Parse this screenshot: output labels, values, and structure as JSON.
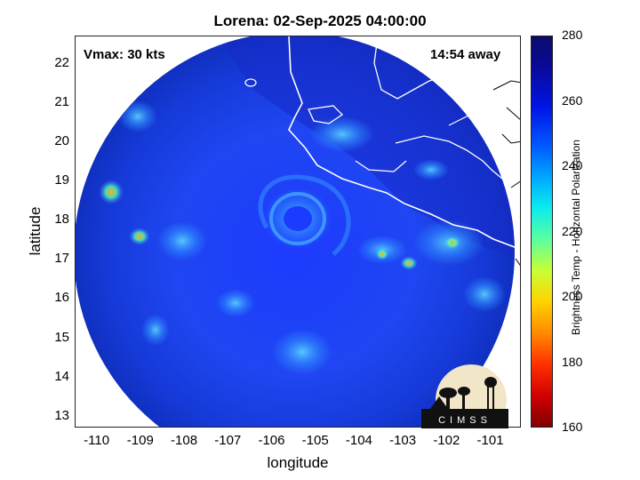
{
  "title": "Lorena: 02-Sep-2025 04:00:00",
  "annotations": {
    "vmax": "Vmax: 30 kts",
    "away": "14:54 away"
  },
  "axes": {
    "xlabel": "longitude",
    "ylabel": "latitude",
    "xticks": [
      "-110",
      "-109",
      "-108",
      "-107",
      "-106",
      "-105",
      "-104",
      "-103",
      "-102",
      "-101"
    ],
    "yticks": [
      "22",
      "21",
      "20",
      "19",
      "18",
      "17",
      "16",
      "15",
      "14",
      "13"
    ],
    "xlim": [
      -110.5,
      -100.3
    ],
    "ylim": [
      12.7,
      22.7
    ]
  },
  "colorbar": {
    "label": "Brightness Temp - Horizontal Polarization",
    "ticks": [
      "280",
      "260",
      "240",
      "220",
      "200",
      "180",
      "160"
    ],
    "range": [
      160,
      280
    ],
    "colormap": "jet"
  },
  "map_features": {
    "swath_center": [
      -105.0,
      17.6
    ],
    "storm_center": [
      -105.3,
      17.8
    ],
    "coastline_color": "#ffffff",
    "land_border_color": "#000000"
  },
  "logo": {
    "text": "CIMSS"
  }
}
